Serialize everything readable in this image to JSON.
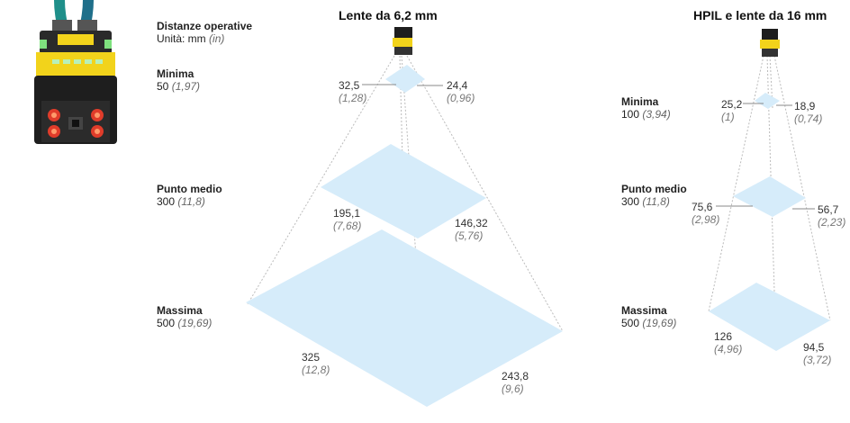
{
  "legend": {
    "header": "Distanze operative",
    "units_prefix": "Unità: mm",
    "units_alt": "(in)"
  },
  "left": {
    "title": "Lente da 6,2 mm",
    "rows": [
      {
        "name": "Minima",
        "mm": "50",
        "in": "(1,97)"
      },
      {
        "name": "Punto medio",
        "mm": "300",
        "in": "(11,8)"
      },
      {
        "name": "Massima",
        "mm": "500",
        "in": "(19,69)"
      }
    ],
    "dims": [
      {
        "w": "32,5",
        "wi": "(1,28)",
        "h": "24,4",
        "hi": "(0,96)"
      },
      {
        "w": "195,1",
        "wi": "(7,68)",
        "h": "146,32",
        "hi": "(5,76)"
      },
      {
        "w": "325",
        "wi": "(12,8)",
        "h": "243,8",
        "hi": "(9,6)"
      }
    ]
  },
  "right": {
    "title": "HPIL e lente da 16 mm",
    "rows": [
      {
        "name": "Minima",
        "mm": "100",
        "in": "(3,94)"
      },
      {
        "name": "Punto medio",
        "mm": "300",
        "in": "(11,8)"
      },
      {
        "name": "Massima",
        "mm": "500",
        "in": "(19,69)"
      }
    ],
    "dims": [
      {
        "w": "25,2",
        "wi": "(1)",
        "h": "18,9",
        "hi": "(0,74)"
      },
      {
        "w": "75,6",
        "wi": "(2,98)",
        "h": "56,7",
        "hi": "(2,23)"
      },
      {
        "w": "126",
        "wi": "(4,96)",
        "h": "94,5",
        "hi": "(3,72)"
      }
    ]
  },
  "colors": {
    "plane": "#d6ecfa",
    "camera_yellow": "#f2d31b",
    "camera_body": "#1e1e1e"
  }
}
